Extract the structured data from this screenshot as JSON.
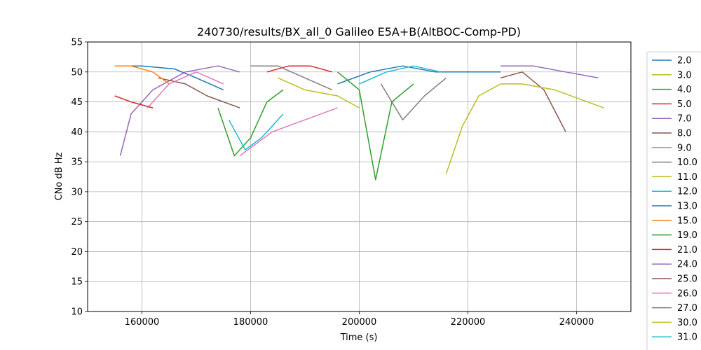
{
  "chart_data": {
    "type": "line",
    "title": "240730/results/BX_all_0 Galileo E5A+B(AltBOC-Comp-PD)",
    "xlabel": "Time (s)",
    "ylabel": "CNo dB Hz",
    "xlim": [
      150000,
      250000
    ],
    "ylim": [
      10,
      55
    ],
    "xticks": [
      160000,
      180000,
      200000,
      220000,
      240000
    ],
    "xtick_labels": [
      "160000",
      "180000",
      "200000",
      "220000",
      "240000"
    ],
    "yticks": [
      10,
      15,
      20,
      25,
      30,
      35,
      40,
      45,
      50,
      55
    ],
    "ytick_labels": [
      "10",
      "15",
      "20",
      "25",
      "30",
      "35",
      "40",
      "45",
      "50",
      "55"
    ],
    "grid": true,
    "legend_position": "outside-right",
    "series": [
      {
        "name": "2.0",
        "color": "#1f77b4",
        "x": [
          155000,
          160000,
          166000,
          170000,
          175000
        ],
        "y": [
          51,
          51,
          50.5,
          49,
          47
        ]
      },
      {
        "name": "3.0",
        "color": "#bcbd22",
        "x": [
          185000,
          190000,
          196000,
          200000
        ],
        "y": [
          49,
          47,
          46,
          44
        ]
      },
      {
        "name": "4.0",
        "color": "#2ca02c",
        "x": [
          174000,
          177000,
          180000,
          183000,
          186000
        ],
        "y": [
          44,
          36,
          39,
          45,
          47
        ]
      },
      {
        "name": "5.0",
        "color": "#d62728",
        "x": [
          183000,
          187000,
          191000,
          195000
        ],
        "y": [
          50,
          51,
          51,
          50
        ]
      },
      {
        "name": "7.0",
        "color": "#9467bd",
        "x": [
          156000,
          158000,
          162000,
          168000,
          174000,
          178000
        ],
        "y": [
          36,
          43,
          47,
          50,
          51,
          50
        ]
      },
      {
        "name": "8.0",
        "color": "#8c564b",
        "x": [
          163000,
          168000,
          172000,
          178000
        ],
        "y": [
          49,
          48,
          46,
          44
        ]
      },
      {
        "name": "9.0",
        "color": "#e377c2",
        "x": [
          161000,
          165000,
          170000,
          175000
        ],
        "y": [
          44,
          48,
          50,
          48
        ]
      },
      {
        "name": "10.0",
        "color": "#7f7f7f",
        "x": [
          180000,
          185000,
          190000,
          195000
        ],
        "y": [
          51,
          51,
          49,
          47
        ]
      },
      {
        "name": "11.0",
        "color": "#bcbd22",
        "x": [
          216000,
          219000,
          222000,
          226000,
          230000
        ],
        "y": [
          33,
          41,
          46,
          48,
          48
        ]
      },
      {
        "name": "12.0",
        "color": "#17becf",
        "x": [
          176000,
          179000,
          182000,
          186000
        ],
        "y": [
          42,
          37,
          39,
          43
        ]
      },
      {
        "name": "13.0",
        "color": "#1f77b4",
        "x": [
          196000,
          202000,
          208000,
          214000,
          220000,
          226000
        ],
        "y": [
          48,
          50,
          51,
          50,
          50,
          50
        ]
      },
      {
        "name": "15.0",
        "color": "#ff7f0e",
        "x": [
          155000,
          158000,
          162000,
          165000
        ],
        "y": [
          51,
          51,
          50,
          48
        ]
      },
      {
        "name": "19.0",
        "color": "#2ca02c",
        "x": [
          196000,
          200000,
          203000,
          206000,
          210000
        ],
        "y": [
          50,
          47,
          32,
          45,
          48
        ]
      },
      {
        "name": "21.0",
        "color": "#d62728",
        "x": [
          155000,
          158000,
          162000
        ],
        "y": [
          46,
          45,
          44
        ]
      },
      {
        "name": "24.0",
        "color": "#9467bd",
        "x": [
          226000,
          232000,
          238000,
          244000
        ],
        "y": [
          51,
          51,
          50,
          49
        ]
      },
      {
        "name": "25.0",
        "color": "#8c564b",
        "x": [
          226000,
          230000,
          234000,
          238000
        ],
        "y": [
          49,
          50,
          47,
          40
        ]
      },
      {
        "name": "26.0",
        "color": "#e377c2",
        "x": [
          178000,
          184000,
          190000,
          196000
        ],
        "y": [
          36,
          40,
          42,
          44
        ]
      },
      {
        "name": "27.0",
        "color": "#7f7f7f",
        "x": [
          204000,
          208000,
          212000,
          216000
        ],
        "y": [
          48,
          42,
          46,
          49
        ]
      },
      {
        "name": "30.0",
        "color": "#bcbd22",
        "x": [
          230000,
          236000,
          242000,
          245000
        ],
        "y": [
          48,
          47,
          45,
          44
        ]
      },
      {
        "name": "31.0",
        "color": "#17becf",
        "x": [
          200000,
          205000,
          210000,
          215000
        ],
        "y": [
          48,
          50,
          51,
          50
        ]
      }
    ]
  }
}
